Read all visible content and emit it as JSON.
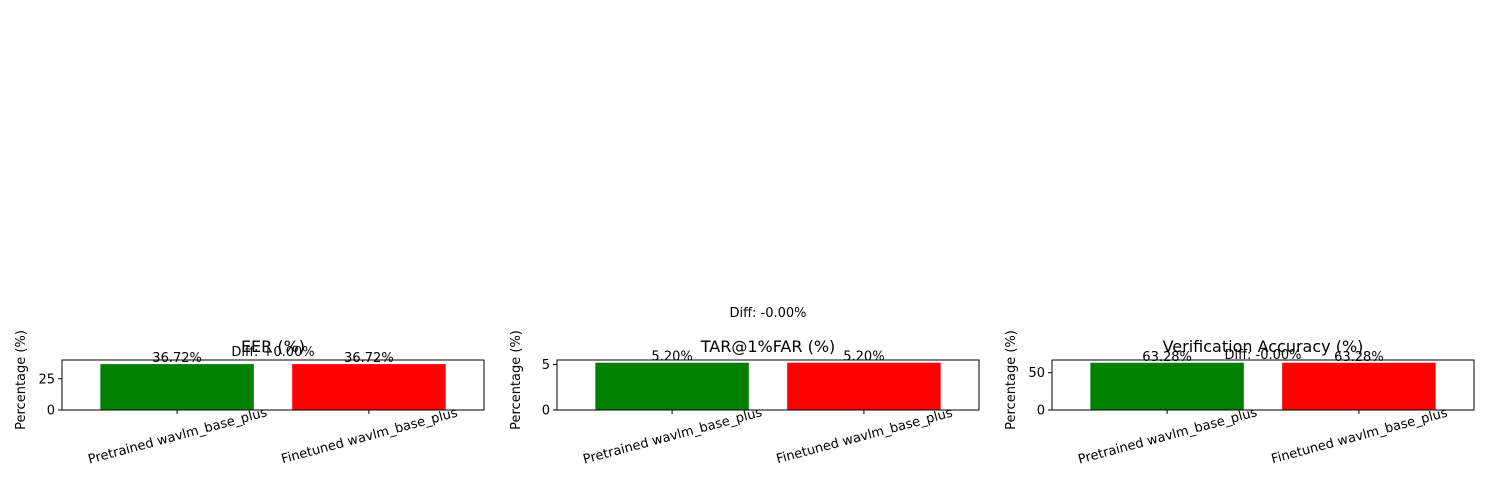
{
  "chart_data": [
    {
      "type": "bar",
      "title": "EER (%)",
      "ylabel": "Percentage (%)",
      "categories": [
        "Pretrained wavlm_base_plus",
        "Finetuned wavlm_base_plus"
      ],
      "values": [
        36.72,
        36.72
      ],
      "value_labels": [
        "36.72%",
        "36.72%"
      ],
      "colors": [
        "#008000",
        "#ff0000"
      ],
      "annotation": "Diff: +0.00%",
      "ylim": [
        0,
        40
      ],
      "yticks": [
        0,
        25
      ]
    },
    {
      "type": "bar",
      "title": "TAR@1%FAR (%)",
      "ylabel": "Percentage (%)",
      "categories": [
        "Pretrained wavlm_base_plus",
        "Finetuned wavlm_base_plus"
      ],
      "values": [
        5.2,
        5.2
      ],
      "value_labels": [
        "5.20%",
        "5.20%"
      ],
      "colors": [
        "#008000",
        "#ff0000"
      ],
      "annotation": "Diff: -0.00%",
      "ylim": [
        0,
        5.5
      ],
      "yticks": [
        0,
        5
      ]
    },
    {
      "type": "bar",
      "title": "Verification Accuracy (%)",
      "ylabel": "Percentage (%)",
      "categories": [
        "Pretrained wavlm_base_plus",
        "Finetuned wavlm_base_plus"
      ],
      "values": [
        63.28,
        63.28
      ],
      "value_labels": [
        "63.28%",
        "63.28%"
      ],
      "colors": [
        "#008000",
        "#ff0000"
      ],
      "annotation": "Diff: -0.00%",
      "ylim": [
        0,
        67
      ],
      "yticks": [
        0,
        50
      ]
    }
  ]
}
